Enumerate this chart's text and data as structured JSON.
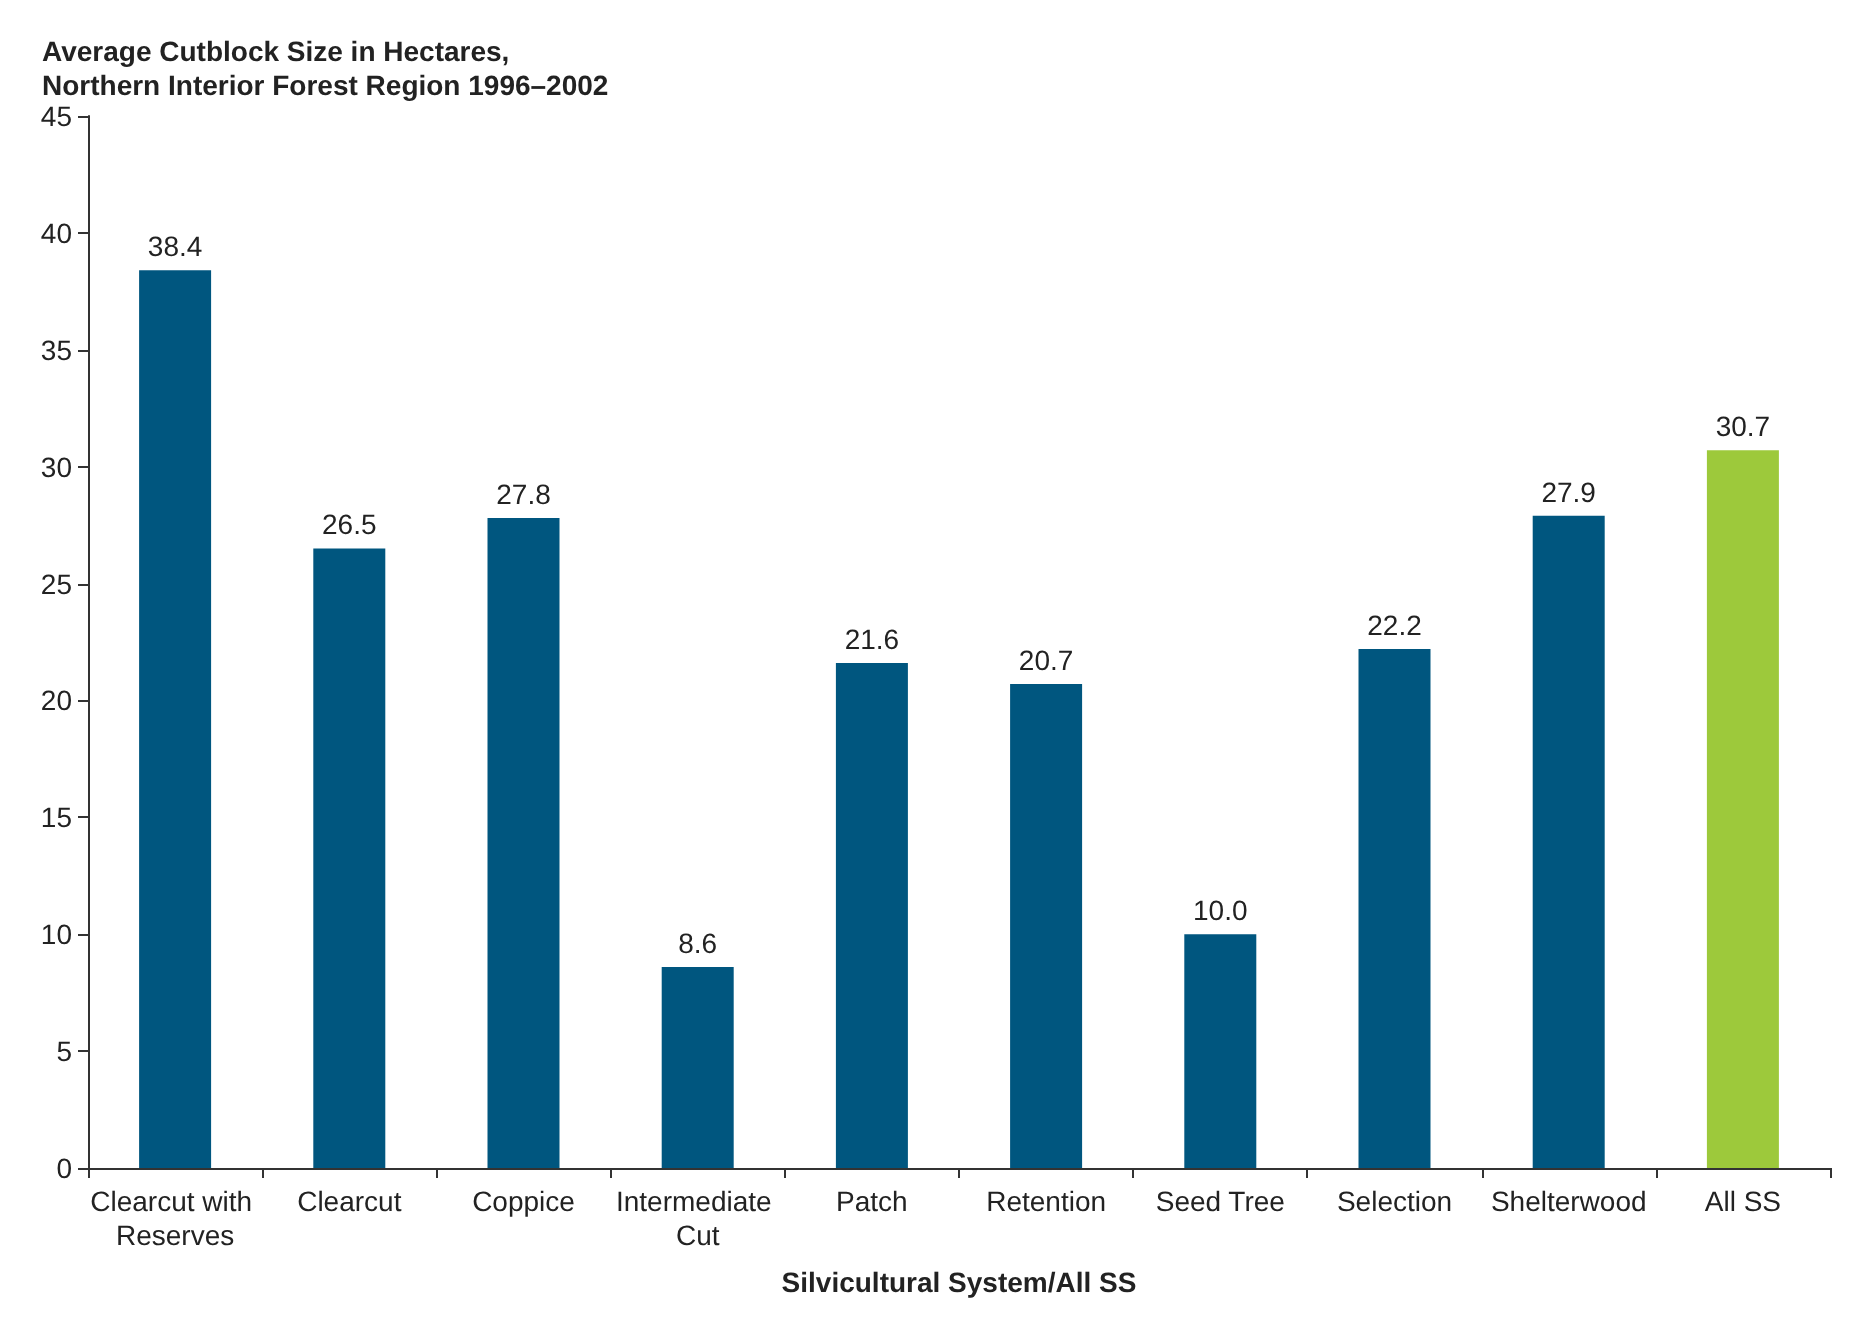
{
  "chart_data": {
    "type": "bar",
    "title": "Average Cutblock Size in Hectares,\nNorthern Interior Forest Region 1996–2002",
    "xlabel": "Silvicultural System/All SS",
    "categories": [
      "Clearcut with Reserves",
      "Clearcut",
      "Coppice",
      "Intermediate Cut",
      "Patch",
      "Retention",
      "Seed Tree",
      "Selection",
      "Shelterwood",
      "All SS"
    ],
    "values": [
      38.4,
      26.5,
      27.8,
      8.6,
      21.6,
      20.7,
      10.0,
      22.2,
      27.9,
      30.7
    ],
    "colors": [
      "#00567f",
      "#00567f",
      "#00567f",
      "#00567f",
      "#00567f",
      "#00567f",
      "#00567f",
      "#00567f",
      "#00567f",
      "#9dc93b"
    ],
    "value_labels": [
      "38.4",
      "26.5",
      "27.8",
      "8.6",
      "21.6",
      "20.7",
      "10.0",
      "22.2",
      "27.9",
      "30.7"
    ],
    "ylim": [
      0,
      45
    ],
    "yticks": [
      0,
      5,
      10,
      15,
      20,
      25,
      30,
      35,
      40,
      45
    ],
    "grid": false
  }
}
